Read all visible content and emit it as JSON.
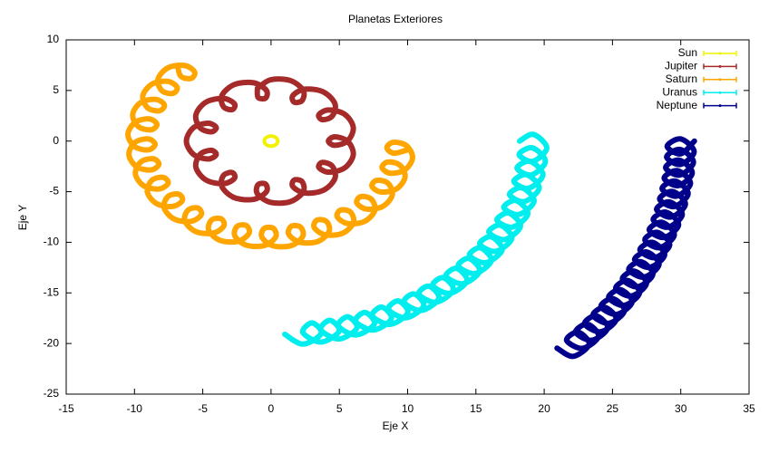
{
  "chart_data": {
    "type": "line",
    "title": "Planetas Exteriores",
    "x_label": "Eje X",
    "y_label": "Eje Y",
    "xlim": [
      -15,
      35
    ],
    "ylim": [
      -25,
      10
    ],
    "xticks": [
      -15,
      -10,
      -5,
      0,
      5,
      10,
      15,
      20,
      25,
      30,
      35
    ],
    "yticks": [
      10,
      5,
      0,
      -5,
      -10,
      -15,
      -20,
      -25
    ],
    "grid": false,
    "legend": "upper right",
    "series": [
      {
        "name": "Sun",
        "color": "#f2f200",
        "x": [
          0.5,
          0.43,
          0.25,
          0,
          -0.25,
          -0.43,
          -0.5,
          -0.43,
          -0.25,
          0,
          0.25,
          0.43,
          0.5
        ],
        "values": [
          0,
          0.25,
          0.43,
          0.5,
          0.43,
          0.25,
          0,
          -0.25,
          -0.43,
          -0.5,
          -0.43,
          -0.25,
          0
        ]
      },
      {
        "name": "Jupiter",
        "color": "#a52a2a",
        "x": [
          -1,
          -0.95,
          -0.4,
          -0.35,
          -1.28,
          -2.7,
          -3.6,
          -3.48,
          -2.84,
          -2.68,
          -3.48,
          -4.76,
          -5.5,
          -5.21,
          -4.39,
          -4.02,
          -4.62,
          -5.68,
          -6.2,
          -5.68,
          -4.62,
          -4.02,
          -4.39,
          -5.21,
          -5.5,
          -4.76,
          -3.48,
          -2.68,
          -2.84,
          -3.48,
          -3.6,
          -2.7,
          -1.28,
          -0.35,
          -0.4,
          -0.95,
          -1,
          -0.05,
          1.4,
          2.35,
          2.28,
          1.7,
          1.6,
          2.48,
          3.84,
          4.68,
          4.48,
          3.76,
          3.5,
          4.21,
          5.39,
          6.02,
          5.62,
          4.68,
          4.2,
          4.68,
          5.62,
          6.02,
          5.39,
          4.21,
          3.5,
          3.76,
          4.48,
          4.68,
          3.84,
          2.48,
          1.6,
          1.7,
          2.28,
          2.35,
          1.4,
          -0.05,
          -1
        ],
        "values": [
          5.2,
          4.31,
          4.25,
          5.02,
          5.76,
          5.58,
          4.5,
          3.39,
          3.11,
          3.68,
          4.21,
          3.85,
          2.6,
          1.33,
          0.91,
          1.35,
          1.77,
          1.32,
          0,
          -1.32,
          -1.77,
          -1.35,
          -0.91,
          -1.33,
          -2.6,
          -3.85,
          -4.21,
          -3.68,
          -3.11,
          -3.39,
          -4.5,
          -5.58,
          -5.76,
          -5.02,
          -4.25,
          -4.31,
          -5.2,
          -6.05,
          -5.99,
          -5.02,
          -4.02,
          -3.84,
          -4.5,
          -5.13,
          -4.85,
          -3.68,
          -2.47,
          -2.11,
          -2.6,
          -3.07,
          -2.65,
          -1.35,
          -0.03,
          0.42,
          0,
          -0.42,
          0.03,
          1.35,
          2.65,
          3.07,
          2.6,
          2.11,
          2.47,
          3.68,
          4.85,
          5.13,
          4.5,
          3.84,
          4.02,
          5.02,
          5.99,
          6.05,
          5.2
        ]
      },
      {
        "name": "Saturn",
        "color": "#ffa500",
        "x": [
          -6.85,
          -6.61,
          -5.86,
          -5.6,
          -6.33,
          -7.56,
          -8.28,
          -7.99,
          -7.19,
          -6.88,
          -7.56,
          -8.73,
          -9.39,
          -9.04,
          -8.18,
          -7.81,
          -8.43,
          -9.54,
          -10.13,
          -9.72,
          -8.79,
          -8.36,
          -8.91,
          -9.95,
          -10.48,
          -9.99,
          -9,
          -8.49,
          -8.98,
          -9.95,
          -10.41,
          -9.86,
          -8.79,
          -8.22,
          -8.63,
          -9.54,
          -9.93,
          -9.31,
          -8.18,
          -7.54,
          -7.89,
          -8.73,
          -9.06,
          -8.38,
          -7.19,
          -6.49,
          -6.78,
          -7.56,
          -7.83,
          -7.1,
          -5.86,
          -5.11,
          -5.35,
          -6.08,
          -6.31,
          -5.53,
          -4.25,
          -3.46,
          -3.66,
          -4.36,
          -4.56,
          -3.75,
          -2.44,
          -1.62,
          -1.8,
          -2.48,
          -2.65,
          -1.82,
          -0.49,
          0.34,
          0.17,
          -0.5,
          -0.67,
          0.16,
          1.49,
          2.32,
          2.15,
          1.48,
          1.3,
          2.12,
          3.44,
          4.25,
          4.06,
          3.36,
          3.16,
          3.96,
          5.25,
          6.03,
          5.81,
          5.08,
          4.85,
          5.61,
          6.86,
          7.6,
          7.33,
          6.56,
          6.28,
          6.99,
          8.19,
          8.88,
          8.56,
          7.73,
          7.39,
          8.04,
          9.18,
          9.81,
          9.43,
          8.54,
          8.13,
          8.72,
          9.79,
          10.36,
          9.91,
          8.95,
          8.48,
          8.99,
          10
        ],
        "values": [
          7.49,
          6.41,
          6.19,
          6.83,
          7.47,
          7.23,
          6.11,
          4.98,
          4.71,
          5.31,
          5.9,
          5.62,
          4.46,
          3.29,
          2.99,
          3.56,
          4.12,
          3.81,
          2.62,
          1.43,
          1.11,
          1.65,
          2.19,
          1.86,
          0.66,
          -0.54,
          -0.87,
          -0.33,
          0.21,
          -0.12,
          -1.32,
          -2.52,
          -2.85,
          -2.3,
          -1.75,
          -2.07,
          -3.25,
          -4.43,
          -4.73,
          -4.16,
          -3.59,
          -3.88,
          -5.03,
          -6.18,
          -6.45,
          -5.85,
          -5.24,
          -5.49,
          -6.6,
          -7.7,
          -7.93,
          -7.28,
          -6.62,
          -6.82,
          -7.88,
          -8.93,
          -9.1,
          -8.39,
          -7.67,
          -7.81,
          -8.81,
          -9.8,
          -9.91,
          -9.13,
          -8.35,
          -8.42,
          -9.36,
          -10.28,
          -10.32,
          -9.48,
          -8.62,
          -8.63,
          -9.49,
          -10.35,
          -10.32,
          -9.41,
          -8.49,
          -8.42,
          -9.22,
          -10,
          -9.91,
          -8.93,
          -7.94,
          -7.81,
          -8.54,
          -9.26,
          -9.1,
          -8.06,
          -7.01,
          -6.82,
          -7.49,
          -8.15,
          -7.93,
          -6.83,
          -5.73,
          -5.49,
          -6.11,
          -6.72,
          -6.45,
          -5.31,
          -4.16,
          -3.88,
          -4.46,
          -5.03,
          -4.73,
          -3.56,
          -2.38,
          -2.07,
          -2.62,
          -3.17,
          -2.85,
          -1.65,
          -0.45,
          -0.12,
          -0.66,
          -1.2,
          -0.87
        ]
      },
      {
        "name": "Uranus",
        "color": "#00eeee",
        "x": [
          1.01,
          2.34,
          3.67,
          3.0,
          2.33,
          3.66,
          4.99,
          4.32,
          3.64,
          4.97,
          6.29,
          5.61,
          4.93,
          6.25,
          7.57,
          6.88,
          6.19,
          7.5,
          8.81,
          8.11,
          7.42,
          8.72,
          10.01,
          9.31,
          8.6,
          9.89,
          11.17,
          10.46,
          9.74,
          11.01,
          12.29,
          11.55,
          10.82,
          12.08,
          13.34,
          12.6,
          11.85,
          13.09,
          14.34,
          13.58,
          12.81,
          14.04,
          15.27,
          14.49,
          13.71,
          14.92,
          16.13,
          15.33,
          14.53,
          15.73,
          16.92,
          16.1,
          15.28,
          16.46,
          17.63,
          16.79,
          15.95,
          17.11,
          18.26,
          17.4,
          16.54,
          17.67,
          18.8,
          17.93,
          17.04,
          18.15,
          19.26,
          18.36,
          17.46,
          18.55,
          19.63,
          18.71,
          17.78,
          18.85,
          19.91,
          18.96,
          18.01,
          19.06,
          20.09,
          19.13,
          18.16,
          19.17,
          20.19,
          19.2,
          18.2
        ],
        "values": [
          -19.09,
          -20.06,
          -19.01,
          -17.96,
          -18.91,
          -19.85,
          -18.78,
          -17.71,
          -18.63,
          -19.55,
          -18.46,
          -17.36,
          -18.26,
          -19.15,
          -18.04,
          -16.93,
          -17.8,
          -18.67,
          -17.54,
          -16.4,
          -17.26,
          -18.11,
          -16.95,
          -15.79,
          -16.63,
          -17.46,
          -16.28,
          -15.1,
          -15.92,
          -16.73,
          -15.53,
          -14.33,
          -15.13,
          -15.92,
          -14.71,
          -13.49,
          -14.27,
          -15.04,
          -13.81,
          -12.58,
          -13.34,
          -14.09,
          -12.85,
          -11.6,
          -12.34,
          -13.08,
          -11.82,
          -10.55,
          -11.29,
          -12.01,
          -10.74,
          -9.46,
          -10.17,
          -10.89,
          -9.6,
          -8.31,
          -9.01,
          -9.72,
          -8.42,
          -7.11,
          -7.81,
          -8.5,
          -7.19,
          -5.88,
          -6.57,
          -7.25,
          -5.93,
          -4.61,
          -5.29,
          -5.97,
          -4.64,
          -3.32,
          -3.99,
          -4.66,
          -3.33,
          -2.0,
          -2.67,
          -3.34,
          -2.01,
          -0.67,
          -1.34,
          -2.0,
          -0.67,
          0.66,
          0
        ]
      },
      {
        "name": "Neptune",
        "color": "#00008b",
        "x": [
          20.94,
          22.12,
          23.29,
          22.47,
          21.64,
          22.81,
          23.98,
          23.15,
          22.31,
          23.48,
          24.64,
          23.8,
          22.96,
          24.12,
          25.27,
          24.43,
          23.58,
          24.73,
          25.87,
          25.02,
          24.16,
          25.3,
          26.44,
          25.58,
          24.72,
          25.85,
          26.98,
          26.11,
          25.24,
          26.37,
          27.49,
          26.61,
          25.73,
          26.85,
          27.96,
          27.08,
          26.19,
          27.3,
          28.41,
          27.52,
          26.62,
          27.72,
          28.82,
          27.92,
          27.01,
          28.1,
          29.19,
          28.28,
          27.37,
          28.45,
          29.53,
          28.61,
          27.69,
          28.77,
          29.84,
          28.91,
          27.98,
          29.05,
          30.11,
          29.17,
          28.23,
          29.29,
          30.34,
          29.4,
          28.45,
          29.5,
          30.54,
          29.59,
          28.63,
          29.67,
          30.71,
          29.75,
          28.78,
          29.81,
          30.84,
          29.87,
          28.89,
          29.91,
          30.93,
          29.95,
          28.96,
          29.97,
          30.98,
          29.99,
          29,
          30,
          31
        ],
        "values": [
          -20.46,
          -21.27,
          -20.07,
          -18.88,
          -19.68,
          -20.48,
          -19.28,
          -18.08,
          -18.88,
          -19.68,
          -18.47,
          -17.26,
          -18.05,
          -18.84,
          -17.63,
          -16.42,
          -17.21,
          -18.0,
          -16.78,
          -15.56,
          -16.34,
          -17.12,
          -15.9,
          -14.68,
          -15.45,
          -16.23,
          -15,
          -13.77,
          -14.54,
          -15.31,
          -14.08,
          -12.85,
          -13.62,
          -14.39,
          -13.15,
          -11.92,
          -12.68,
          -13.44,
          -12.2,
          -10.96,
          -11.72,
          -12.48,
          -11.24,
          -10.0,
          -10.75,
          -11.51,
          -10.26,
          -9.02,
          -9.77,
          -10.52,
          -9.27,
          -8.02,
          -8.77,
          -9.52,
          -8.27,
          -7.02,
          -7.76,
          -8.51,
          -7.26,
          -6.01,
          -6.75,
          -7.5,
          -6.24,
          -4.98,
          -5.72,
          -6.47,
          -5.21,
          -3.95,
          -4.69,
          -5.44,
          -4.18,
          -2.92,
          -3.66,
          -4.4,
          -3.14,
          -1.88,
          -2.62,
          -3.36,
          -2.09,
          -0.83,
          -1.57,
          -2.31,
          -1.05,
          0.21,
          -0.52,
          -1.26,
          0
        ]
      }
    ]
  }
}
